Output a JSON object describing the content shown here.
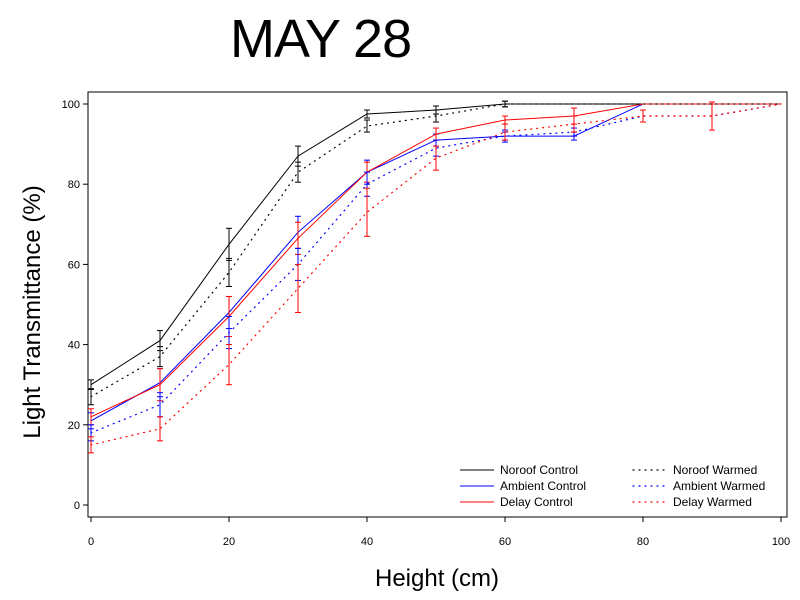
{
  "chart_data": {
    "type": "line",
    "title": "MAY 28",
    "xlabel": "Height (cm)",
    "ylabel": "Light Transmittance (%)",
    "xlim": [
      0,
      100
    ],
    "ylim": [
      0,
      100
    ],
    "xticks": [
      "0",
      "20",
      "40",
      "60",
      "80",
      "100"
    ],
    "yticks": [
      "0",
      "20",
      "40",
      "60",
      "80",
      "100"
    ],
    "grid": false,
    "legend_position": "bottom-right",
    "series": [
      {
        "name": "Noroof Control",
        "color": "#000000",
        "style": "solid",
        "x": [
          0,
          10,
          20,
          30,
          40,
          50,
          60,
          70,
          80,
          90,
          100
        ],
        "y": [
          30,
          41,
          65,
          87,
          97.5,
          98.5,
          100,
          100,
          100,
          100,
          100
        ],
        "err": [
          1.2,
          2.5,
          4,
          2.5,
          1,
          1,
          0.7,
          0,
          0,
          0,
          0
        ]
      },
      {
        "name": "Ambient Control",
        "color": "#0000ff",
        "style": "solid",
        "x": [
          0,
          10,
          20,
          30,
          40,
          50,
          60,
          70,
          80,
          90,
          100
        ],
        "y": [
          21,
          30.5,
          48,
          68,
          83,
          91,
          92,
          92,
          100,
          100,
          100
        ],
        "err": [
          2,
          3.5,
          4,
          4,
          3,
          1.5,
          1.5,
          1,
          0,
          0,
          0
        ]
      },
      {
        "name": "Delay Control",
        "color": "#ff0000",
        "style": "solid",
        "x": [
          0,
          10,
          20,
          30,
          40,
          50,
          60,
          70,
          80,
          90,
          100
        ],
        "y": [
          22,
          30,
          47,
          66.5,
          83,
          92.5,
          96,
          97,
          100,
          100,
          100
        ],
        "err": [
          2,
          4,
          5,
          4,
          2.5,
          1.5,
          1,
          2,
          0,
          0,
          0
        ]
      },
      {
        "name": "Noroof Warmed",
        "color": "#000000",
        "style": "dotted",
        "x": [
          0,
          10,
          20,
          30,
          40,
          50,
          60,
          70,
          80,
          90,
          100
        ],
        "y": [
          27,
          37,
          58,
          83,
          94.5,
          97,
          100,
          100,
          100,
          100,
          100
        ],
        "err": [
          2,
          2.5,
          3.5,
          2.5,
          1.5,
          1.5,
          0.7,
          0,
          0,
          0,
          0
        ]
      },
      {
        "name": "Ambient Warmed",
        "color": "#0000ff",
        "style": "dotted",
        "x": [
          0,
          10,
          20,
          30,
          40,
          50,
          60,
          70,
          80,
          90,
          100
        ],
        "y": [
          18,
          25,
          43,
          60,
          80,
          89,
          92,
          93,
          97,
          97,
          100
        ],
        "err": [
          2,
          3,
          4,
          4,
          3,
          2,
          1,
          1,
          0,
          0,
          0
        ]
      },
      {
        "name": "Delay Warmed",
        "color": "#ff0000",
        "style": "dotted",
        "x": [
          0,
          10,
          20,
          30,
          40,
          50,
          60,
          70,
          80,
          90,
          100
        ],
        "y": [
          15,
          19,
          35,
          54,
          73,
          86.5,
          93,
          95,
          97,
          97,
          100
        ],
        "err": [
          2,
          3,
          5,
          6,
          6,
          3,
          2,
          2,
          1.5,
          3.5,
          0
        ]
      }
    ]
  }
}
